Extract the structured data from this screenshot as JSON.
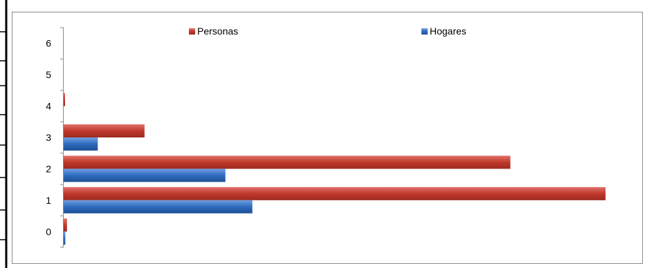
{
  "chart_data": {
    "type": "bar",
    "orientation": "horizontal",
    "categories": [
      "0",
      "1",
      "2",
      "3",
      "4",
      "5",
      "6"
    ],
    "series": [
      {
        "name": "Personas",
        "color": "#c0392b",
        "values": [
          6,
          985,
          812,
          147,
          2,
          0,
          0
        ]
      },
      {
        "name": "Hogares",
        "color": "#2e6bbf",
        "values": [
          3,
          343,
          294,
          62,
          0,
          0,
          0
        ]
      }
    ],
    "legend_position": "top",
    "grid": false,
    "x_axis_visible": false,
    "xlim": [
      0,
      1000
    ]
  }
}
